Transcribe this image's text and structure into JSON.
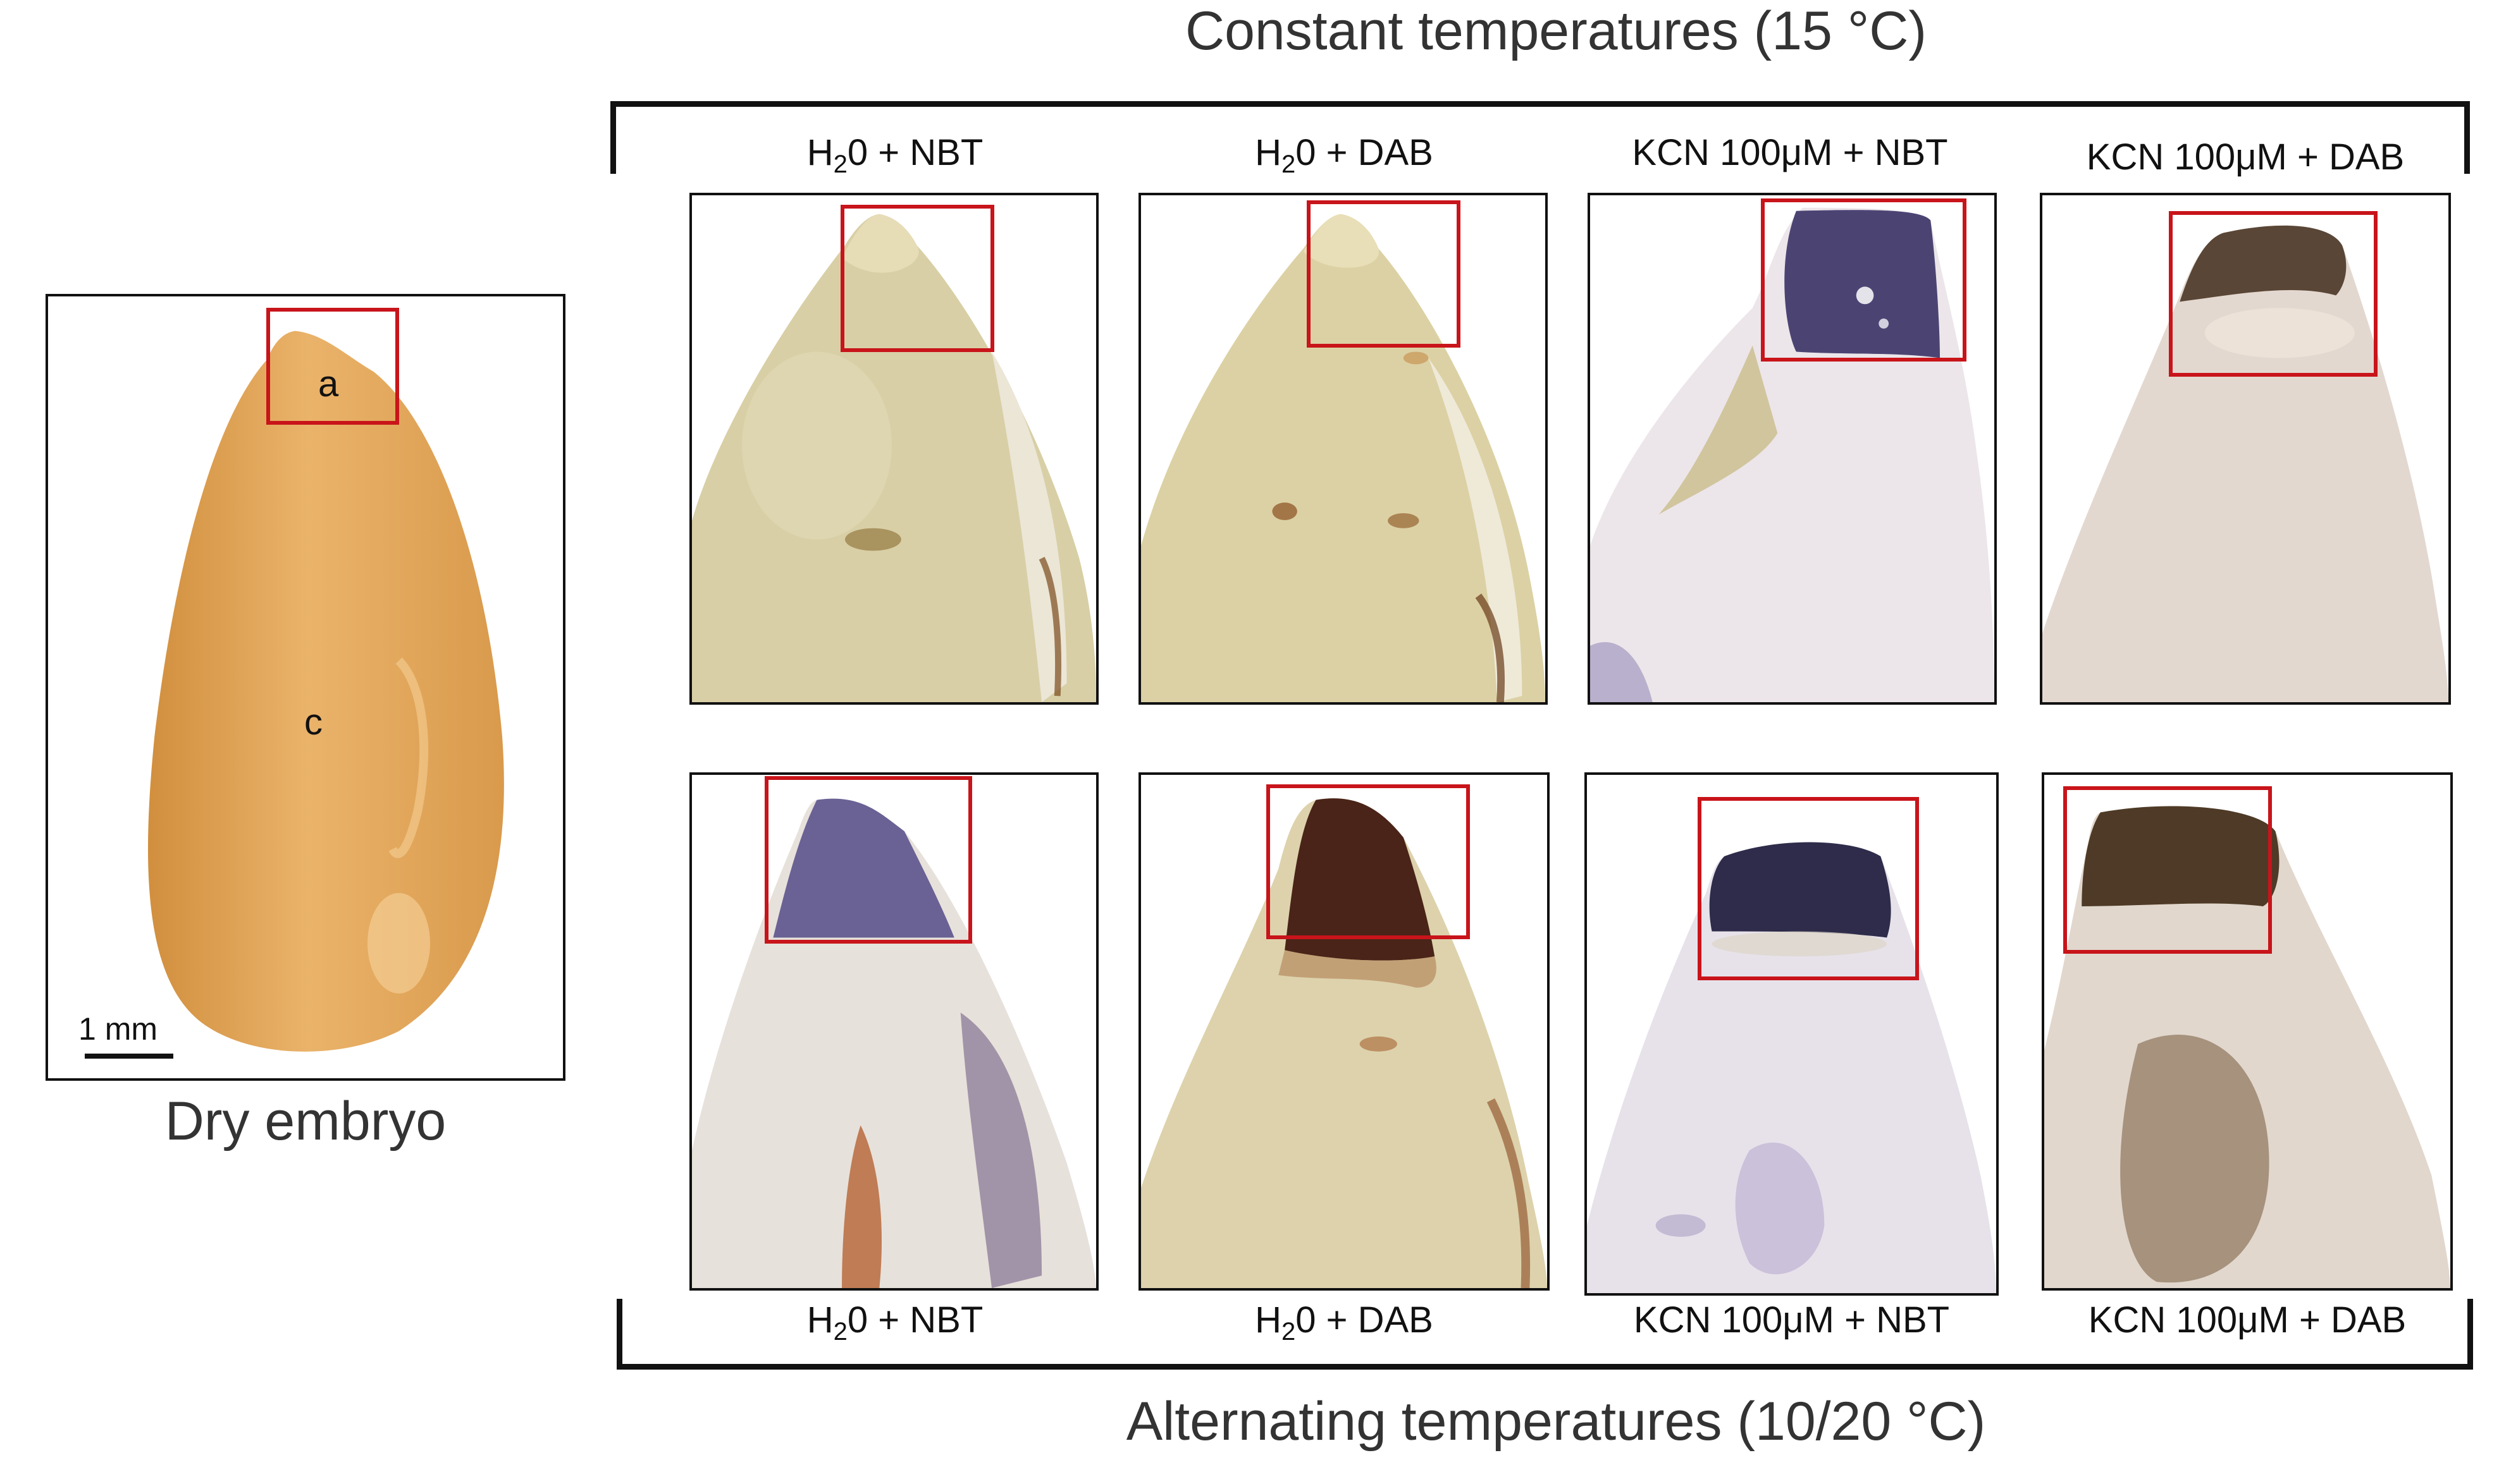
{
  "titles": {
    "top": "Constant temperatures (15 °C)",
    "bottom": "Alternating temperatures (10/20 °C)"
  },
  "dry_embryo": {
    "caption": "Dry embryo",
    "label_a": "a",
    "label_c": "c",
    "scale": "1 mm"
  },
  "top_row": [
    {
      "pre": "H",
      "sub": "2",
      "post": "0 + NBT"
    },
    {
      "pre": "H",
      "sub": "2",
      "post": "0 + DAB"
    },
    {
      "pre": "KCN 100μM + NBT",
      "sub": "",
      "post": ""
    },
    {
      "pre": "KCN 100μM + DAB",
      "sub": "",
      "post": ""
    }
  ],
  "bottom_row": [
    {
      "pre": "H",
      "sub": "2",
      "post": "0 + NBT"
    },
    {
      "pre": "H",
      "sub": "2",
      "post": "0 + DAB"
    },
    {
      "pre": "KCN 100μM + NBT",
      "sub": "",
      "post": ""
    },
    {
      "pre": "KCN 100μM + DAB",
      "sub": "",
      "post": ""
    }
  ],
  "colors": {
    "roi_box": "#c8141a",
    "embryo_dry": "#e3a65a",
    "nbt_stain": "#3a3560",
    "dab_stain": "#4a3020"
  }
}
